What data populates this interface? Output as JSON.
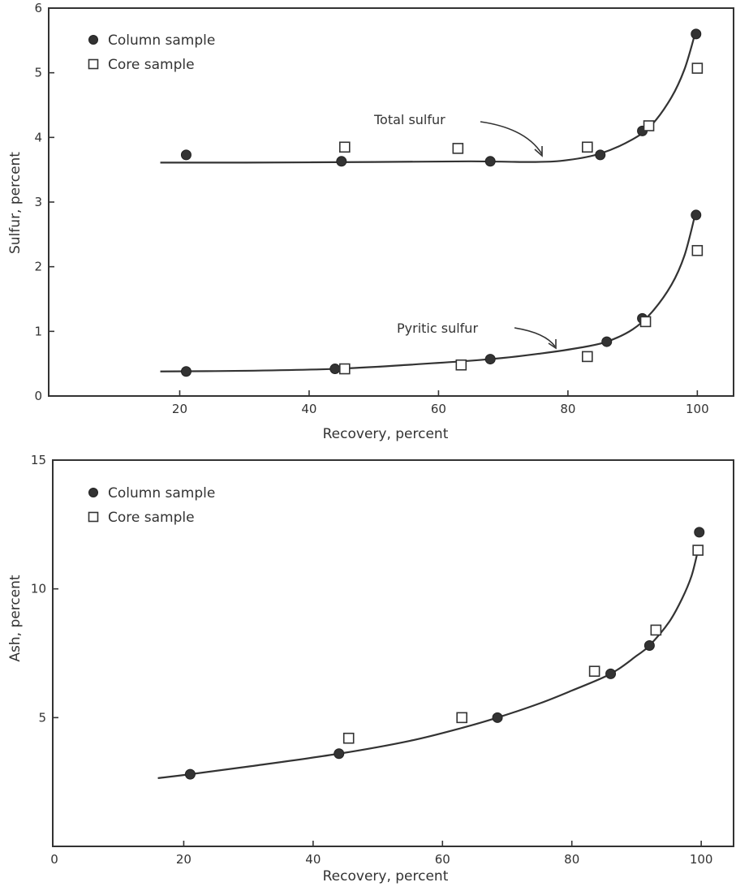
{
  "chart_data": [
    {
      "type": "scatter",
      "title": "",
      "xlabel": "Recovery, percent",
      "ylabel": "Sulfur, percent",
      "xlim": [
        0,
        105
      ],
      "ylim": [
        0,
        6
      ],
      "x_ticks": [
        20,
        40,
        60,
        80,
        100
      ],
      "y_ticks": [
        0,
        1,
        2,
        3,
        4,
        5,
        6
      ],
      "x_tick_labels": [
        "20",
        "40",
        "60",
        "80",
        "100"
      ],
      "y_tick_labels": [
        "0",
        "1",
        "2",
        "3",
        "4",
        "5",
        "6"
      ],
      "grid": false,
      "legend": {
        "position": "top-left",
        "entries": [
          {
            "label": "Column sample",
            "marker": "filled-circle"
          },
          {
            "label": "Core sample",
            "marker": "open-square"
          }
        ]
      },
      "series": [
        {
          "name": "Column sample",
          "group": "total",
          "marker": "filled-circle",
          "x": [
            21,
            45,
            68,
            85,
            91.5,
            99.8
          ],
          "y": [
            3.73,
            3.63,
            3.63,
            3.73,
            4.1,
            5.6
          ]
        },
        {
          "name": "Core sample",
          "group": "total",
          "marker": "open-square",
          "x": [
            45.5,
            63,
            83,
            92.5,
            100
          ],
          "y": [
            3.85,
            3.83,
            3.85,
            4.18,
            5.07
          ]
        },
        {
          "name": "Column sample",
          "group": "pyritic",
          "marker": "filled-circle",
          "x": [
            21,
            44,
            68,
            86,
            91.5,
            99.8
          ],
          "y": [
            0.38,
            0.42,
            0.57,
            0.84,
            1.2,
            2.8
          ]
        },
        {
          "name": "Core sample",
          "group": "pyritic",
          "marker": "open-square",
          "x": [
            45.5,
            63.5,
            83,
            92,
            100
          ],
          "y": [
            0.42,
            0.48,
            0.61,
            1.15,
            2.25
          ]
        }
      ],
      "curves": [
        {
          "label": "Total sulfur",
          "x": [
            17,
            30,
            50,
            65,
            75,
            80,
            85,
            90,
            93,
            96,
            98,
            99.5
          ],
          "y": [
            3.61,
            3.61,
            3.62,
            3.63,
            3.62,
            3.65,
            3.75,
            3.97,
            4.2,
            4.62,
            5.05,
            5.55
          ]
        },
        {
          "label": "Pyritic sulfur",
          "x": [
            17,
            30,
            44,
            55,
            68,
            76,
            82,
            86,
            90,
            93,
            96,
            98,
            99.6
          ],
          "y": [
            0.38,
            0.39,
            0.42,
            0.48,
            0.57,
            0.66,
            0.75,
            0.84,
            1.03,
            1.3,
            1.72,
            2.17,
            2.78
          ]
        }
      ],
      "annotations": [
        {
          "text": "Total sulfur",
          "points_to": {
            "x": 76,
            "y": 3.65
          }
        },
        {
          "text": "Pyritic sulfur",
          "points_to": {
            "x": 79,
            "y": 0.72
          }
        }
      ]
    },
    {
      "type": "scatter",
      "title": "",
      "xlabel": "Recovery, percent",
      "ylabel": "Ash, percent",
      "xlim": [
        0,
        105
      ],
      "ylim": [
        0,
        15
      ],
      "x_ticks": [
        0,
        20,
        40,
        60,
        80,
        100
      ],
      "y_ticks": [
        5,
        10,
        15
      ],
      "x_tick_labels": [
        "0",
        "20",
        "40",
        "60",
        "80",
        "100"
      ],
      "y_tick_labels": [
        "5",
        "10",
        "15"
      ],
      "grid": false,
      "legend": {
        "position": "top-left",
        "entries": [
          {
            "label": "Column sample",
            "marker": "filled-circle"
          },
          {
            "label": "Core sample",
            "marker": "open-square"
          }
        ]
      },
      "series": [
        {
          "name": "Column sample",
          "marker": "filled-circle",
          "x": [
            21,
            44,
            68.5,
            86,
            92,
            99.7
          ],
          "y": [
            2.8,
            3.6,
            5.0,
            6.7,
            7.8,
            12.2
          ]
        },
        {
          "name": "Core sample",
          "marker": "open-square",
          "x": [
            45.5,
            63,
            83.5,
            93,
            99.5
          ],
          "y": [
            4.2,
            5.0,
            6.8,
            8.4,
            11.5
          ]
        }
      ],
      "curves": [
        {
          "label": "",
          "x": [
            16,
            21,
            30,
            44,
            55,
            63,
            68.5,
            75,
            80,
            86,
            90,
            92,
            95,
            97,
            98.5,
            99.5
          ],
          "y": [
            2.65,
            2.8,
            3.1,
            3.6,
            4.1,
            4.6,
            5.0,
            5.55,
            6.05,
            6.7,
            7.4,
            7.8,
            8.7,
            9.6,
            10.5,
            11.5
          ]
        }
      ],
      "annotations": []
    }
  ]
}
